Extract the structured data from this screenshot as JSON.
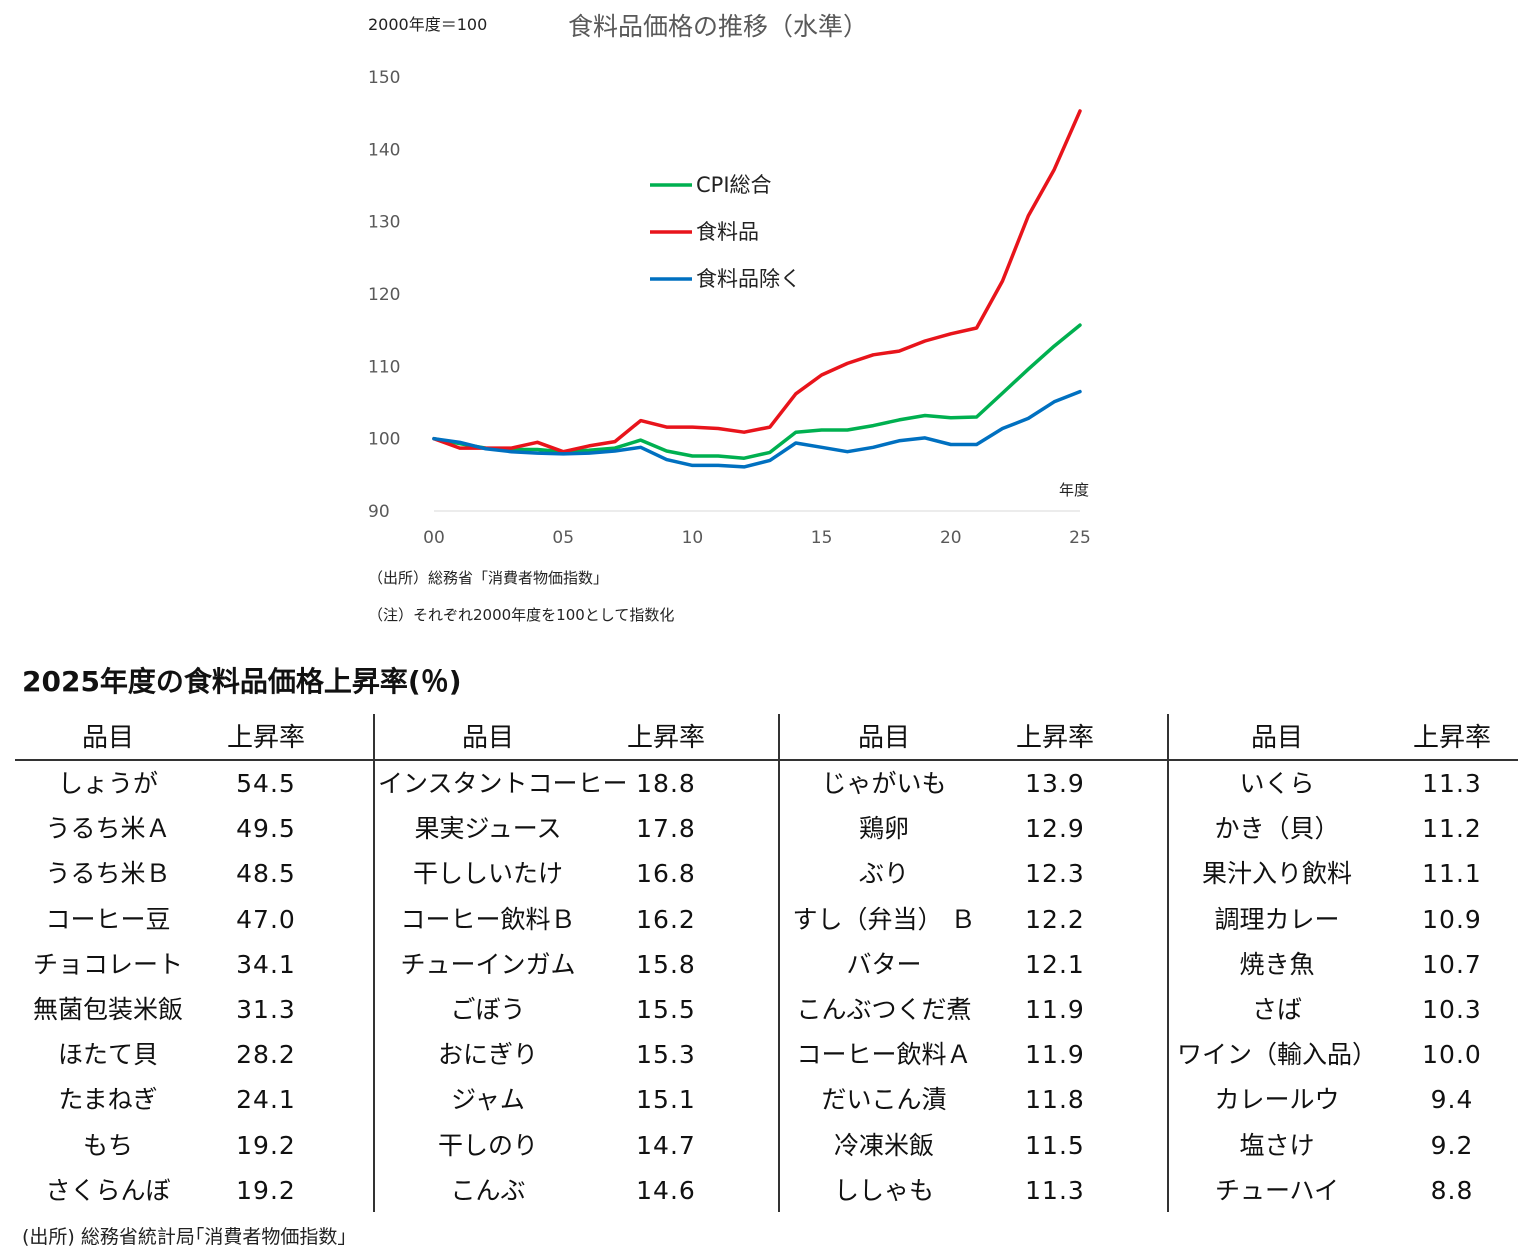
{
  "chart_data": {
    "type": "line",
    "title": "食料品価格の推移（水準）",
    "unit_note": "2000年度＝100",
    "xlabel": "年度",
    "ylim": [
      90,
      150
    ],
    "yticks": [
      "90",
      "100",
      "110",
      "120",
      "130",
      "140",
      "150"
    ],
    "xticks": [
      "00",
      "05",
      "10",
      "15",
      "20",
      "25"
    ],
    "xtick_values": [
      0,
      5,
      10,
      15,
      20,
      25
    ],
    "legend_position": "upper-center",
    "grid": false,
    "x": [
      0,
      1,
      2,
      3,
      4,
      5,
      6,
      7,
      8,
      9,
      10,
      11,
      12,
      13,
      14,
      15,
      16,
      17,
      18,
      19,
      20,
      21,
      22,
      23,
      24,
      25
    ],
    "series": [
      {
        "name": "CPI総合",
        "color": "#00B050",
        "values": [
          100.0,
          99.3,
          98.7,
          98.5,
          98.5,
          98.2,
          98.4,
          98.7,
          99.8,
          98.3,
          97.6,
          97.6,
          97.3,
          98.1,
          100.9,
          101.2,
          101.2,
          101.8,
          102.6,
          103.2,
          102.9,
          103.0,
          106.3,
          109.6,
          112.8,
          115.7
        ]
      },
      {
        "name": "食料品",
        "color": "#E8141B",
        "values": [
          100.0,
          98.7,
          98.7,
          98.7,
          99.5,
          98.2,
          99.0,
          99.6,
          102.5,
          101.6,
          101.6,
          101.4,
          100.9,
          101.6,
          106.2,
          108.8,
          110.4,
          111.6,
          112.1,
          113.5,
          114.5,
          115.3,
          121.8,
          130.8,
          137.2,
          145.3
        ]
      },
      {
        "name": "食料品除く",
        "color": "#0070C0",
        "values": [
          100.0,
          99.5,
          98.6,
          98.2,
          98.0,
          97.9,
          98.0,
          98.3,
          98.8,
          97.1,
          96.3,
          96.3,
          96.1,
          97.0,
          99.4,
          98.8,
          98.2,
          98.8,
          99.7,
          100.1,
          99.2,
          99.2,
          101.4,
          102.8,
          105.1,
          106.5
        ]
      }
    ]
  },
  "chart_notes": [
    "（出所）総務省「消費者物価指数」",
    "（注）それぞれ2000年度を100として指数化"
  ],
  "table": {
    "title": "2025年度の食料品価格上昇率(％)",
    "header_item": "品目",
    "header_rate": "上昇率",
    "groups": [
      [
        {
          "item": "しょうが",
          "rate": "54.5"
        },
        {
          "item": "うるち米Ａ",
          "rate": "49.5"
        },
        {
          "item": "うるち米Ｂ",
          "rate": "48.5"
        },
        {
          "item": "コーヒー豆",
          "rate": "47.0"
        },
        {
          "item": "チョコレート",
          "rate": "34.1"
        },
        {
          "item": "無菌包装米飯",
          "rate": "31.3"
        },
        {
          "item": "ほたて貝",
          "rate": "28.2"
        },
        {
          "item": "たまねぎ",
          "rate": "24.1"
        },
        {
          "item": "もち",
          "rate": "19.2"
        },
        {
          "item": "さくらんぼ",
          "rate": "19.2"
        }
      ],
      [
        {
          "item": "インスタントコーヒー",
          "rate": "18.8"
        },
        {
          "item": "果実ジュース",
          "rate": "17.8"
        },
        {
          "item": "干ししいたけ",
          "rate": "16.8"
        },
        {
          "item": "コーヒー飲料Ｂ",
          "rate": "16.2"
        },
        {
          "item": "チューインガム",
          "rate": "15.8"
        },
        {
          "item": "ごぼう",
          "rate": "15.5"
        },
        {
          "item": "おにぎり",
          "rate": "15.3"
        },
        {
          "item": "ジャム",
          "rate": "15.1"
        },
        {
          "item": "干しのり",
          "rate": "14.7"
        },
        {
          "item": "こんぶ",
          "rate": "14.6"
        }
      ],
      [
        {
          "item": "じゃがいも",
          "rate": "13.9"
        },
        {
          "item": "鶏卵",
          "rate": "12.9"
        },
        {
          "item": "ぶり",
          "rate": "12.3"
        },
        {
          "item": "すし（弁当） Ｂ",
          "rate": "12.2"
        },
        {
          "item": "バター",
          "rate": "12.1"
        },
        {
          "item": "こんぶつくだ煮",
          "rate": "11.9"
        },
        {
          "item": "コーヒー飲料Ａ",
          "rate": "11.9"
        },
        {
          "item": "だいこん漬",
          "rate": "11.8"
        },
        {
          "item": "冷凍米飯",
          "rate": "11.5"
        },
        {
          "item": "ししゃも",
          "rate": "11.3"
        }
      ],
      [
        {
          "item": "いくら",
          "rate": "11.3"
        },
        {
          "item": "かき（貝）",
          "rate": "11.2"
        },
        {
          "item": "果汁入り飲料",
          "rate": "11.1"
        },
        {
          "item": "調理カレー",
          "rate": "10.9"
        },
        {
          "item": "焼き魚",
          "rate": "10.7"
        },
        {
          "item": "さば",
          "rate": "10.3"
        },
        {
          "item": "ワイン（輸入品）",
          "rate": "10.0"
        },
        {
          "item": "カレールウ",
          "rate": "9.4"
        },
        {
          "item": "塩さけ",
          "rate": "9.2"
        },
        {
          "item": "チューハイ",
          "rate": "8.8"
        }
      ]
    ],
    "source": "(出所) 総務省統計局｢消費者物価指数｣"
  }
}
